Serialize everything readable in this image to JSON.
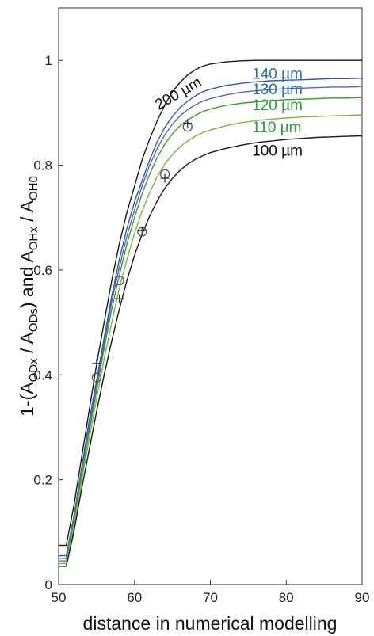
{
  "chart_data": {
    "type": "line",
    "title": "",
    "xlabel": "distance in numerical modelling",
    "ylabel_parts": {
      "prefix": "1-(A",
      "sub1": "ODx",
      "mid1": " / A",
      "sub2": "ODs",
      "mid2": ")  and  A",
      "sub3": "OHx",
      "mid3": " / A",
      "sub4": "OH0"
    },
    "xlim": [
      50,
      90
    ],
    "ylim": [
      0,
      1.1
    ],
    "xticks": [
      "50",
      "60",
      "70",
      "80",
      "90"
    ],
    "yticks": [
      "0",
      "0.2",
      "0.4",
      "0.6",
      "0.8",
      "1"
    ],
    "grid": false,
    "series": [
      {
        "name": "200 µm",
        "color": "#1a1a1a",
        "x": [
          50,
          51,
          52,
          53,
          54,
          55,
          56,
          57,
          58,
          59,
          60,
          61,
          62,
          63,
          64,
          65,
          66,
          67,
          68,
          69,
          70,
          72,
          74,
          76,
          78,
          80,
          82,
          84,
          86,
          88,
          90
        ],
        "y": [
          0.075,
          0.075,
          0.15,
          0.24,
          0.33,
          0.42,
          0.5,
          0.58,
          0.65,
          0.71,
          0.76,
          0.81,
          0.85,
          0.885,
          0.915,
          0.94,
          0.958,
          0.972,
          0.982,
          0.989,
          0.993,
          0.997,
          0.999,
          1.0,
          1.0,
          1.0,
          1.0,
          1.0,
          1.0,
          1.0,
          1.0
        ]
      },
      {
        "name": "140 µm",
        "color": "#2f5aa8",
        "x": [
          50,
          51,
          52,
          53,
          54,
          55,
          56,
          57,
          58,
          59,
          60,
          61,
          62,
          63,
          64,
          65,
          66,
          67,
          68,
          69,
          70,
          72,
          74,
          76,
          78,
          80,
          82,
          84,
          86,
          88,
          90
        ],
        "y": [
          0.055,
          0.055,
          0.13,
          0.22,
          0.31,
          0.39,
          0.47,
          0.55,
          0.62,
          0.68,
          0.73,
          0.77,
          0.81,
          0.845,
          0.872,
          0.893,
          0.91,
          0.922,
          0.932,
          0.94,
          0.945,
          0.952,
          0.956,
          0.959,
          0.961,
          0.962,
          0.963,
          0.964,
          0.965,
          0.965,
          0.966
        ]
      },
      {
        "name": "130 µm",
        "color": "#5a63b0",
        "x": [
          50,
          51,
          52,
          53,
          54,
          55,
          56,
          57,
          58,
          59,
          60,
          61,
          62,
          63,
          64,
          65,
          66,
          67,
          68,
          69,
          70,
          72,
          74,
          76,
          78,
          80,
          82,
          84,
          86,
          88,
          90
        ],
        "y": [
          0.05,
          0.05,
          0.125,
          0.215,
          0.3,
          0.38,
          0.46,
          0.54,
          0.605,
          0.665,
          0.715,
          0.76,
          0.8,
          0.832,
          0.858,
          0.878,
          0.894,
          0.906,
          0.915,
          0.922,
          0.927,
          0.934,
          0.939,
          0.942,
          0.944,
          0.946,
          0.947,
          0.948,
          0.949,
          0.949,
          0.95
        ]
      },
      {
        "name": "120 µm",
        "color": "#3e9a3a",
        "x": [
          50,
          51,
          52,
          53,
          54,
          55,
          56,
          57,
          58,
          59,
          60,
          61,
          62,
          63,
          64,
          65,
          66,
          67,
          68,
          69,
          70,
          72,
          74,
          76,
          78,
          80,
          82,
          84,
          86,
          88,
          90
        ],
        "y": [
          0.045,
          0.045,
          0.12,
          0.205,
          0.29,
          0.37,
          0.45,
          0.525,
          0.59,
          0.65,
          0.7,
          0.745,
          0.783,
          0.815,
          0.84,
          0.86,
          0.875,
          0.886,
          0.895,
          0.902,
          0.907,
          0.914,
          0.918,
          0.921,
          0.923,
          0.925,
          0.926,
          0.927,
          0.928,
          0.928,
          0.929
        ]
      },
      {
        "name": "110 µm",
        "color": "#7ab648",
        "x": [
          50,
          51,
          52,
          53,
          54,
          55,
          56,
          57,
          58,
          59,
          60,
          61,
          62,
          63,
          64,
          65,
          66,
          67,
          68,
          69,
          70,
          72,
          74,
          76,
          78,
          80,
          82,
          84,
          86,
          88,
          90
        ],
        "y": [
          0.04,
          0.04,
          0.11,
          0.195,
          0.275,
          0.355,
          0.43,
          0.5,
          0.565,
          0.62,
          0.67,
          0.712,
          0.748,
          0.778,
          0.802,
          0.82,
          0.835,
          0.846,
          0.855,
          0.862,
          0.867,
          0.875,
          0.881,
          0.885,
          0.888,
          0.89,
          0.892,
          0.893,
          0.894,
          0.895,
          0.896
        ]
      },
      {
        "name": "100 µm",
        "color": "#1a1a1a",
        "x": [
          50,
          51,
          52,
          53,
          54,
          55,
          56,
          57,
          58,
          59,
          60,
          61,
          62,
          63,
          64,
          65,
          66,
          67,
          68,
          69,
          70,
          72,
          74,
          76,
          78,
          80,
          82,
          84,
          86,
          88,
          90
        ],
        "y": [
          0.035,
          0.035,
          0.1,
          0.18,
          0.255,
          0.33,
          0.4,
          0.465,
          0.525,
          0.58,
          0.628,
          0.668,
          0.703,
          0.732,
          0.756,
          0.775,
          0.79,
          0.802,
          0.811,
          0.818,
          0.824,
          0.832,
          0.838,
          0.843,
          0.846,
          0.849,
          0.851,
          0.853,
          0.854,
          0.855,
          0.856
        ]
      }
    ],
    "curve_labels": [
      {
        "text": "200 µm",
        "color": "#111111",
        "x": 63.2,
        "y": 0.905,
        "rotate": -30
      },
      {
        "text": "140 µm",
        "color": "#2a6fa6",
        "x": 75.5,
        "y": 0.965
      },
      {
        "text": "130 µm",
        "color": "#2a6fa6",
        "x": 75.5,
        "y": 0.935
      },
      {
        "text": "120 µm",
        "color": "#2f9a3a",
        "x": 75.5,
        "y": 0.905
      },
      {
        "text": "110 µm",
        "color": "#2f9a3a",
        "x": 75.5,
        "y": 0.863
      },
      {
        "text": "100 µm",
        "color": "#111111",
        "x": 75.5,
        "y": 0.818
      }
    ],
    "markers_circle": [
      {
        "x": 55,
        "y": 0.395
      },
      {
        "x": 58,
        "y": 0.58
      },
      {
        "x": 61,
        "y": 0.673
      },
      {
        "x": 64,
        "y": 0.783
      },
      {
        "x": 67,
        "y": 0.873
      }
    ],
    "markers_plus": [
      {
        "x": 55,
        "y": 0.422
      },
      {
        "x": 58,
        "y": 0.545
      },
      {
        "x": 61,
        "y": 0.675
      },
      {
        "x": 64,
        "y": 0.775
      },
      {
        "x": 67,
        "y": 0.88
      }
    ]
  }
}
